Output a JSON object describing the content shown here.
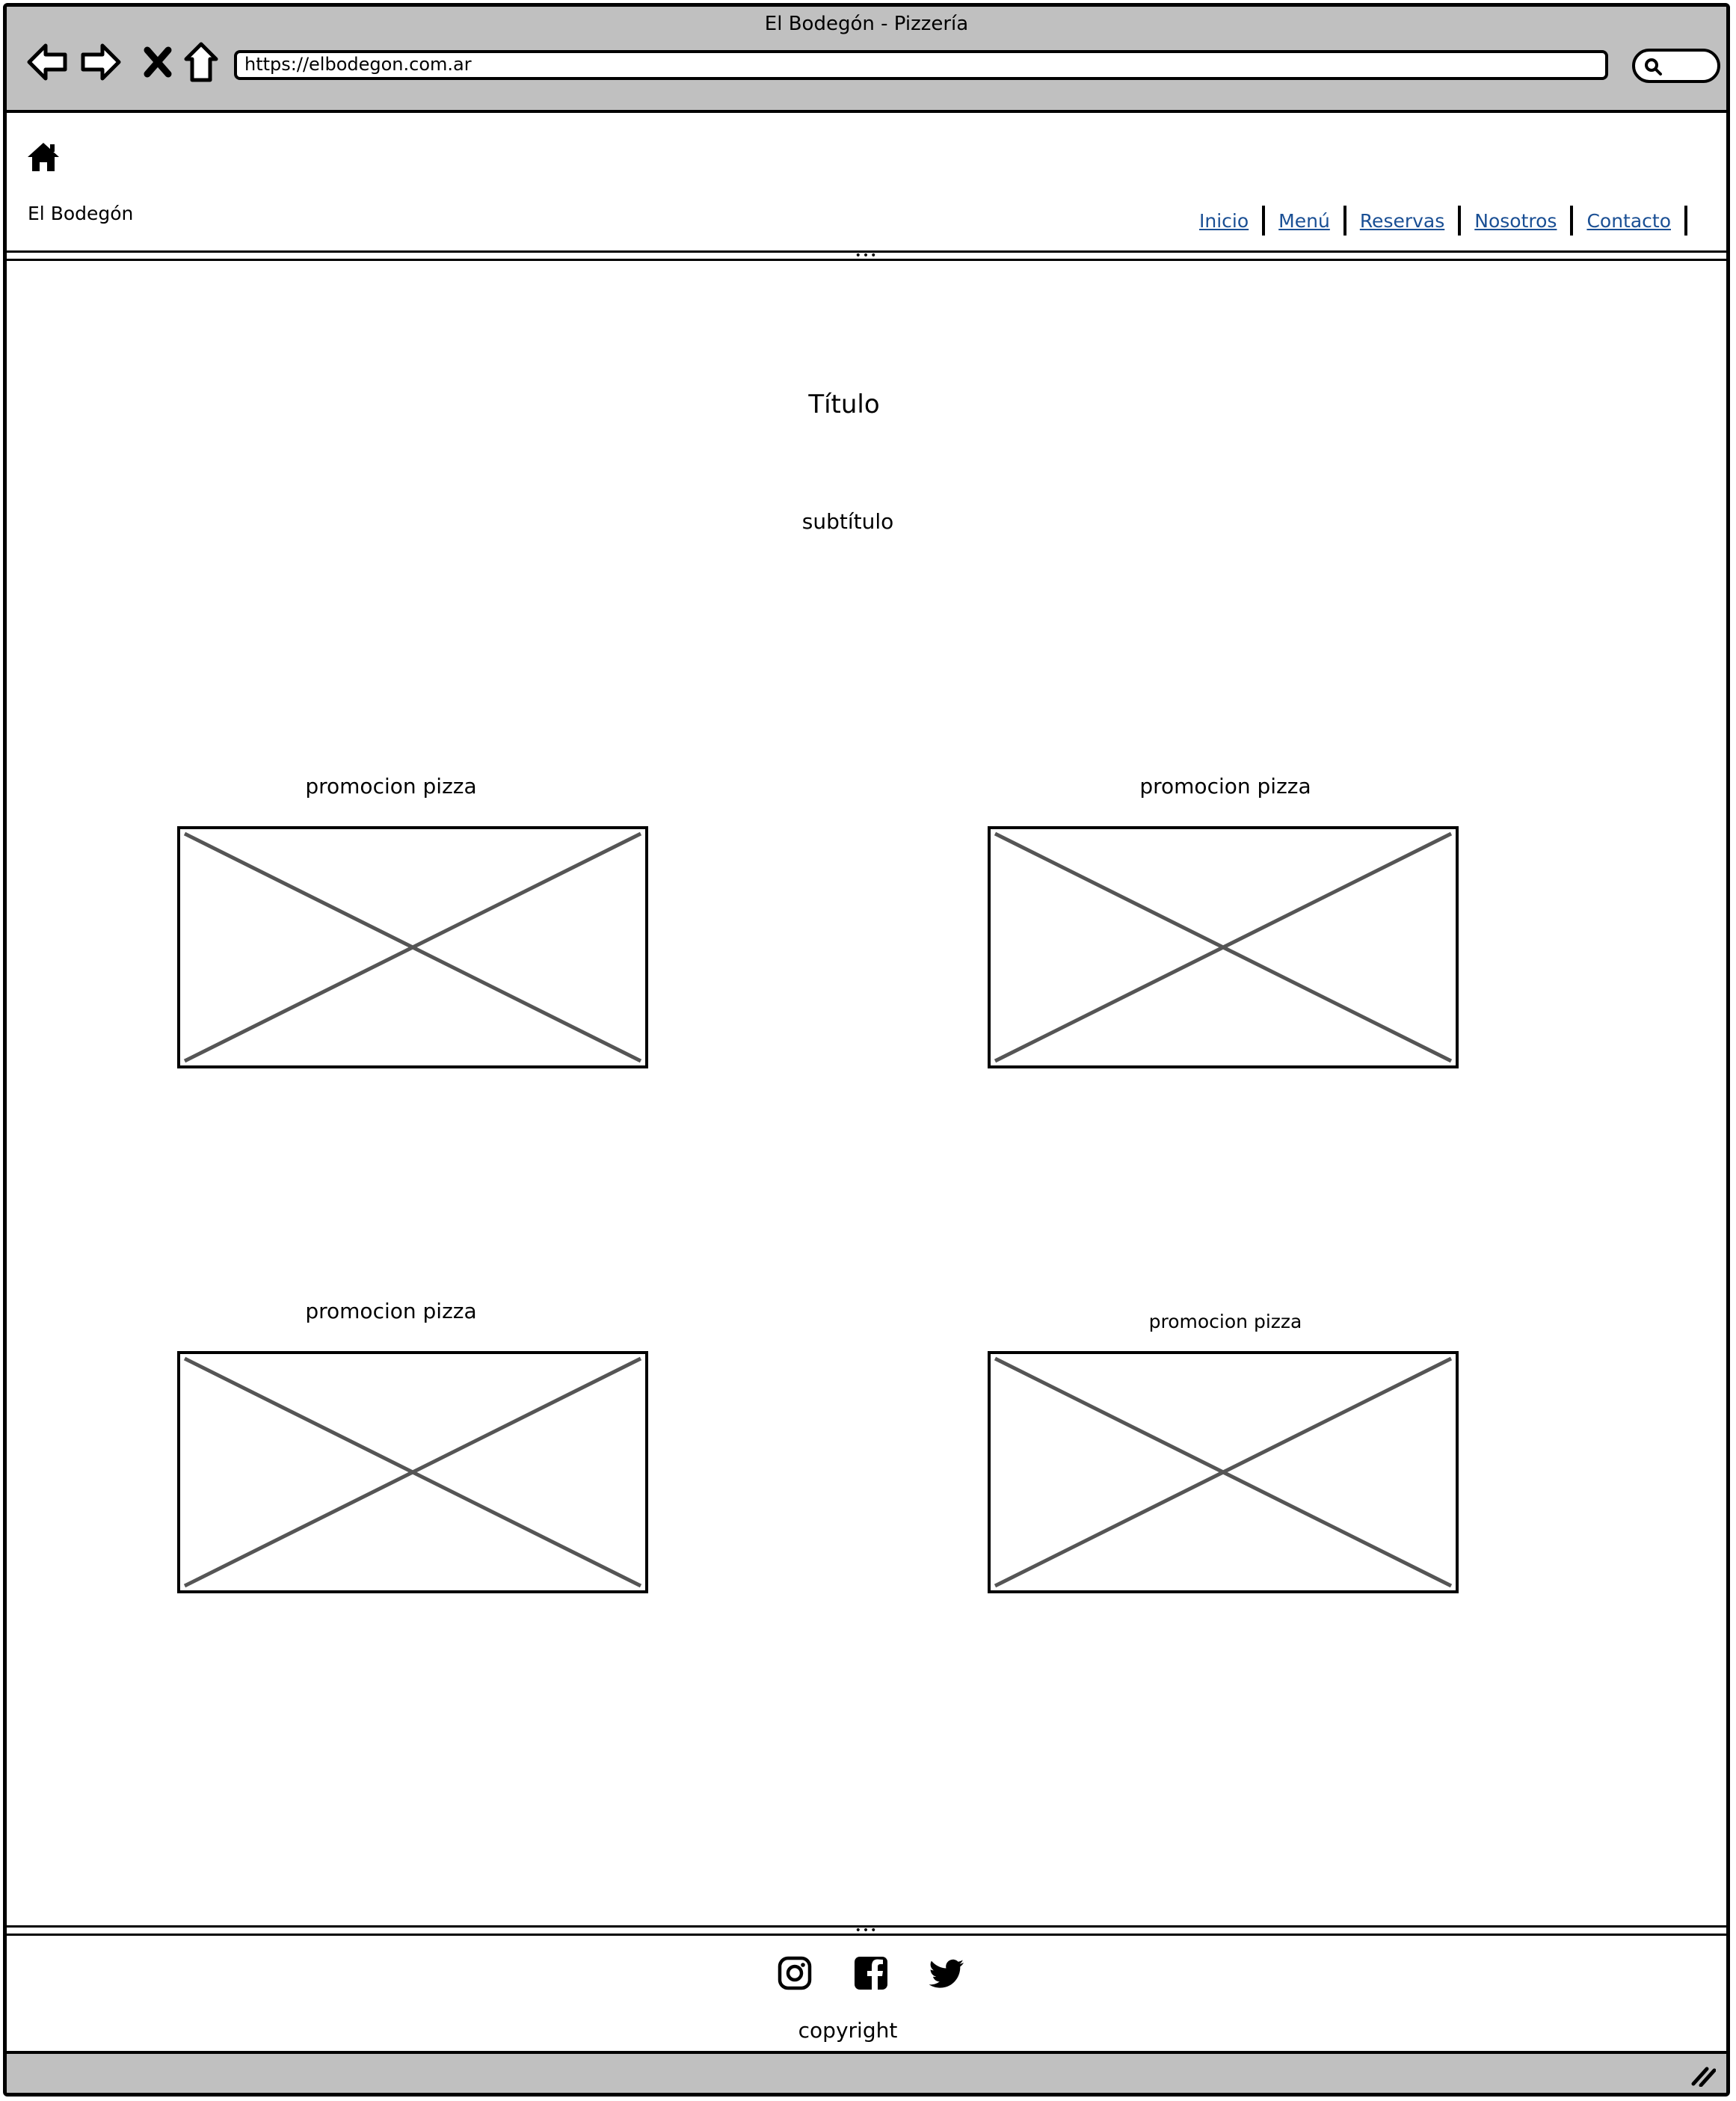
{
  "window": {
    "title": "El Bodegón - Pizzería",
    "url": "https://elbodegon.com.ar"
  },
  "header": {
    "brand": "El Bodegón",
    "nav": [
      {
        "label": "Inicio"
      },
      {
        "label": "Menú"
      },
      {
        "label": "Reservas"
      },
      {
        "label": "Nosotros"
      },
      {
        "label": "Contacto"
      }
    ]
  },
  "main": {
    "title": "Título",
    "subtitle": "subtítulo",
    "promos": [
      {
        "label": "promocion pizza"
      },
      {
        "label": "promocion pizza"
      },
      {
        "label": "promocion pizza"
      },
      {
        "label": "promocion pizza"
      }
    ]
  },
  "footer": {
    "social_icons": [
      "instagram-icon",
      "facebook-icon",
      "twitter-icon"
    ],
    "copyright": "copyright"
  },
  "colors": {
    "chrome": "#c0c0c0",
    "link": "#1a4f94",
    "placeholder_stroke": "#555555"
  }
}
